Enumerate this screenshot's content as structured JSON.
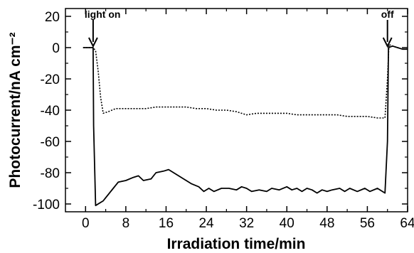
{
  "chart_data": {
    "type": "line",
    "xlabel": "Irradiation time/min",
    "ylabel": "Photocurrent/nA cm⁻²",
    "xlim": [
      -4,
      64
    ],
    "ylim": [
      -105,
      25
    ],
    "x_ticks": [
      "0",
      "8",
      "16",
      "24",
      "32",
      "40",
      "48",
      "56",
      "64"
    ],
    "y_ticks": [
      "20",
      "0",
      "-20",
      "-40",
      "-60",
      "-80",
      "-100"
    ],
    "x_tick_values": [
      0,
      8,
      16,
      24,
      32,
      40,
      48,
      56,
      64
    ],
    "y_tick_values": [
      20,
      0,
      -20,
      -40,
      -60,
      -80,
      -100
    ],
    "grid": false,
    "legend": "none",
    "annotations": [
      {
        "text": "light on",
        "x": 1.5,
        "y": 0
      },
      {
        "text": "off",
        "x": 60,
        "y": 0
      }
    ],
    "series": [
      {
        "style": "solid",
        "x": [
          -0.5,
          1.5,
          1.6,
          2.0,
          3.5,
          5.5,
          6.5,
          8.0,
          9.5,
          10.5,
          11.5,
          13.0,
          14.0,
          15.5,
          16.5,
          19.0,
          21.0,
          22.5,
          23.5,
          24.5,
          25.5,
          27.0,
          28.5,
          30.0,
          31.0,
          32.0,
          33.0,
          34.5,
          36.0,
          37.0,
          38.5,
          40.0,
          41.0,
          42.0,
          43.0,
          44.0,
          45.0,
          46.0,
          47.0,
          48.0,
          49.0,
          50.5,
          51.5,
          52.5,
          54.0,
          55.5,
          56.5,
          58.0,
          59.5,
          60.0,
          60.2,
          61.0,
          62.0,
          63.0,
          64.0
        ],
        "y": [
          0,
          0,
          -50,
          -101,
          -98,
          -90,
          -86,
          -85,
          -83,
          -82,
          -85,
          -84,
          -80,
          -79,
          -78,
          -83,
          -87,
          -89,
          -92,
          -90,
          -92,
          -90,
          -90,
          -91,
          -89,
          -90,
          -92,
          -91,
          -92,
          -90,
          -91,
          -89,
          -91,
          -90,
          -92,
          -90,
          -91,
          -93,
          -91,
          -92,
          -91,
          -90,
          -92,
          -90,
          -92,
          -90,
          -92,
          -90,
          -93,
          -60,
          0,
          1,
          0,
          -1,
          -1
        ]
      },
      {
        "style": "dotted",
        "x": [
          -0.5,
          1.5,
          2.0,
          2.5,
          3.0,
          3.5,
          4.5,
          6.0,
          8.0,
          10.0,
          12.0,
          14.0,
          16.0,
          18.0,
          20.0,
          22.0,
          24.0,
          26.0,
          28.0,
          30.0,
          32.0,
          34.0,
          36.0,
          38.0,
          40.0,
          42.0,
          44.0,
          46.0,
          48.0,
          50.0,
          52.0,
          54.0,
          56.0,
          58.0,
          59.5,
          60.0,
          60.3,
          61.0,
          62.0,
          63.0,
          64.0
        ],
        "y": [
          0,
          0,
          -2,
          -15,
          -32,
          -42,
          -41,
          -39,
          -39,
          -39,
          -39,
          -38,
          -38,
          -38,
          -38,
          -39,
          -39,
          -40,
          -40,
          -41,
          -43,
          -42,
          -42,
          -42,
          -42,
          -43,
          -43,
          -43,
          -43,
          -43,
          -44,
          -44,
          -44,
          -45,
          -45,
          -20,
          2,
          1,
          0,
          -1,
          -1
        ]
      }
    ]
  }
}
